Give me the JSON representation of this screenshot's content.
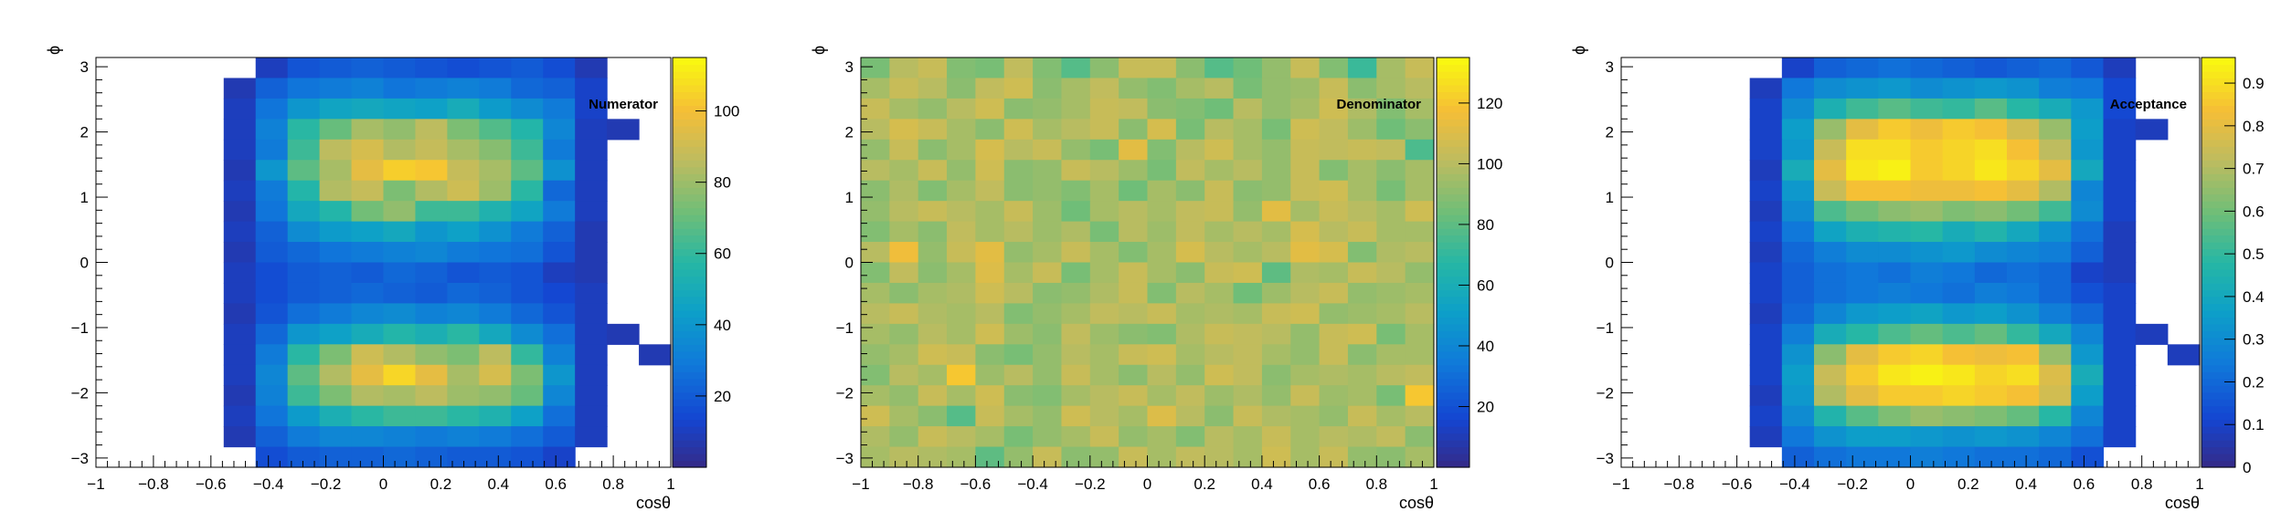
{
  "chart_data": [
    {
      "type": "heatmap",
      "title": "Numerator",
      "xlabel": "cosθ",
      "ylabel": "ϕ",
      "xlim": [
        -1,
        1
      ],
      "ylim": [
        -3.1416,
        3.1416
      ],
      "zlim": [
        0,
        115
      ],
      "x_ticks": [
        "−1",
        "−0.8",
        "−0.6",
        "−0.4",
        "−0.2",
        "0",
        "0.2",
        "0.4",
        "0.6",
        "0.8",
        "1"
      ],
      "y_ticks": [
        "3",
        "2",
        "1",
        "0",
        "−1",
        "−2",
        "−3"
      ],
      "z_ticks": [
        "100",
        "80",
        "60",
        "40",
        "20"
      ],
      "z_tick_values": [
        100,
        80,
        60,
        40,
        20
      ],
      "grid": false,
      "nx": 18,
      "ny": 20,
      "values": [
        [
          0,
          0,
          0,
          0,
          0,
          10,
          18,
          20,
          22,
          20,
          18,
          16,
          18,
          20,
          16,
          8,
          0,
          0
        ],
        [
          0,
          0,
          0,
          0,
          8,
          22,
          28,
          30,
          32,
          28,
          30,
          32,
          30,
          24,
          22,
          12,
          0,
          0
        ],
        [
          0,
          0,
          0,
          0,
          10,
          28,
          40,
          46,
          48,
          46,
          44,
          50,
          42,
          36,
          30,
          12,
          0,
          0
        ],
        [
          0,
          0,
          0,
          0,
          10,
          32,
          58,
          70,
          82,
          78,
          86,
          74,
          66,
          56,
          34,
          10,
          8,
          0
        ],
        [
          0,
          0,
          0,
          0,
          10,
          30,
          62,
          86,
          92,
          84,
          88,
          82,
          76,
          62,
          30,
          10,
          0,
          0
        ],
        [
          0,
          0,
          0,
          0,
          8,
          40,
          68,
          82,
          96,
          104,
          102,
          88,
          82,
          68,
          38,
          10,
          0,
          0
        ],
        [
          0,
          0,
          0,
          0,
          10,
          30,
          56,
          84,
          88,
          74,
          84,
          90,
          80,
          58,
          24,
          10,
          0,
          0
        ],
        [
          0,
          0,
          0,
          0,
          8,
          28,
          48,
          56,
          72,
          78,
          62,
          62,
          54,
          46,
          30,
          10,
          0,
          0
        ],
        [
          0,
          0,
          0,
          0,
          10,
          22,
          36,
          42,
          44,
          48,
          40,
          44,
          38,
          30,
          22,
          8,
          0,
          0
        ],
        [
          0,
          0,
          0,
          0,
          8,
          20,
          24,
          28,
          30,
          32,
          34,
          30,
          28,
          26,
          18,
          8,
          0,
          0
        ],
        [
          0,
          0,
          0,
          0,
          10,
          16,
          20,
          22,
          20,
          24,
          22,
          18,
          20,
          18,
          10,
          8,
          0,
          0
        ],
        [
          0,
          0,
          0,
          0,
          10,
          16,
          20,
          22,
          24,
          22,
          20,
          24,
          22,
          18,
          14,
          10,
          0,
          0
        ],
        [
          0,
          0,
          0,
          0,
          8,
          18,
          26,
          30,
          34,
          36,
          32,
          34,
          30,
          24,
          18,
          10,
          0,
          0
        ],
        [
          0,
          0,
          0,
          0,
          10,
          24,
          40,
          44,
          50,
          56,
          52,
          58,
          48,
          36,
          26,
          10,
          8,
          0
        ],
        [
          0,
          0,
          0,
          0,
          10,
          30,
          58,
          74,
          90,
          84,
          78,
          74,
          86,
          60,
          32,
          10,
          0,
          8
        ],
        [
          0,
          0,
          0,
          0,
          10,
          34,
          68,
          84,
          96,
          106,
          96,
          82,
          92,
          74,
          40,
          10,
          0,
          0
        ],
        [
          0,
          0,
          0,
          0,
          8,
          32,
          62,
          74,
          84,
          82,
          86,
          80,
          78,
          70,
          34,
          10,
          0,
          0
        ],
        [
          0,
          0,
          0,
          0,
          10,
          28,
          42,
          52,
          58,
          62,
          62,
          58,
          54,
          44,
          26,
          10,
          0,
          0
        ],
        [
          0,
          0,
          0,
          0,
          8,
          22,
          30,
          34,
          34,
          32,
          30,
          32,
          30,
          26,
          20,
          10,
          0,
          0
        ],
        [
          0,
          0,
          0,
          0,
          0,
          16,
          20,
          22,
          22,
          24,
          22,
          20,
          20,
          18,
          12,
          0,
          0,
          0
        ]
      ]
    },
    {
      "type": "heatmap",
      "title": "Denominator",
      "xlabel": "cosθ",
      "ylabel": "ϕ",
      "xlim": [
        -1,
        1
      ],
      "ylim": [
        -3.1416,
        3.1416
      ],
      "zlim": [
        0,
        135
      ],
      "x_ticks": [
        "−1",
        "−0.8",
        "−0.6",
        "−0.4",
        "−0.2",
        "0",
        "0.2",
        "0.4",
        "0.6",
        "0.8",
        "1"
      ],
      "y_ticks": [
        "3",
        "2",
        "1",
        "0",
        "−1",
        "−2",
        "−3"
      ],
      "z_ticks": [
        "120",
        "100",
        "80",
        "60",
        "40",
        "20"
      ],
      "z_tick_values": [
        120,
        100,
        80,
        60,
        40,
        20
      ],
      "grid": false,
      "nx": 20,
      "ny": 20,
      "values": [
        [
          86,
          100,
          104,
          88,
          86,
          102,
          88,
          78,
          90,
          104,
          104,
          90,
          78,
          84,
          92,
          104,
          88,
          72,
          96,
          104
        ],
        [
          96,
          104,
          100,
          90,
          102,
          106,
          90,
          96,
          102,
          92,
          88,
          96,
          100,
          86,
          92,
          94,
          104,
          90,
          96,
          100
        ],
        [
          104,
          96,
          92,
          100,
          106,
          90,
          92,
          96,
          104,
          102,
          90,
          88,
          84,
          100,
          92,
          96,
          106,
          98,
          88,
          96
        ],
        [
          100,
          108,
          104,
          96,
          90,
          106,
          96,
          100,
          104,
          90,
          108,
          86,
          100,
          96,
          86,
          106,
          102,
          94,
          84,
          90
        ],
        [
          92,
          104,
          90,
          96,
          108,
          100,
          104,
          92,
          86,
          112,
          88,
          100,
          106,
          96,
          92,
          104,
          102,
          104,
          102,
          76
        ],
        [
          100,
          96,
          104,
          92,
          106,
          90,
          92,
          104,
          100,
          94,
          86,
          102,
          96,
          100,
          92,
          104,
          88,
          96,
          90,
          96
        ],
        [
          90,
          98,
          88,
          96,
          102,
          90,
          92,
          88,
          96,
          84,
          96,
          90,
          104,
          90,
          92,
          104,
          106,
          96,
          86,
          96
        ],
        [
          92,
          100,
          104,
          100,
          96,
          104,
          94,
          84,
          96,
          100,
          96,
          102,
          104,
          92,
          112,
          96,
          104,
          100,
          96,
          106
        ],
        [
          88,
          96,
          90,
          102,
          96,
          100,
          94,
          98,
          86,
          100,
          94,
          102,
          96,
          100,
          96,
          108,
          100,
          104,
          96,
          96
        ],
        [
          100,
          116,
          92,
          104,
          112,
          92,
          96,
          104,
          96,
          88,
          96,
          108,
          100,
          96,
          100,
          112,
          108,
          88,
          98,
          100
        ],
        [
          88,
          102,
          90,
          96,
          110,
          96,
          104,
          86,
          96,
          104,
          96,
          90,
          104,
          106,
          80,
          98,
          96,
          104,
          100,
          92
        ],
        [
          96,
          90,
          96,
          98,
          106,
          100,
          90,
          92,
          98,
          104,
          88,
          100,
          96,
          84,
          94,
          100,
          104,
          92,
          94,
          96
        ],
        [
          100,
          104,
          98,
          96,
          100,
          88,
          92,
          96,
          102,
          100,
          104,
          96,
          98,
          96,
          104,
          106,
          92,
          94,
          96,
          100
        ],
        [
          96,
          92,
          100,
          96,
          106,
          94,
          90,
          102,
          94,
          90,
          88,
          98,
          104,
          102,
          100,
          92,
          104,
          106,
          86,
          96
        ],
        [
          92,
          96,
          106,
          104,
          90,
          86,
          92,
          100,
          96,
          104,
          106,
          96,
          100,
          102,
          96,
          92,
          104,
          90,
          96,
          96
        ],
        [
          88,
          100,
          96,
          120,
          94,
          100,
          92,
          104,
          96,
          90,
          100,
          92,
          106,
          102,
          90,
          96,
          98,
          96,
          100,
          102
        ],
        [
          96,
          92,
          104,
          96,
          106,
          90,
          88,
          96,
          100,
          104,
          96,
          102,
          94,
          98,
          92,
          104,
          94,
          96,
          86,
          120
        ],
        [
          106,
          96,
          90,
          78,
          104,
          96,
          92,
          106,
          100,
          96,
          110,
          100,
          90,
          104,
          98,
          96,
          92,
          104,
          96,
          100
        ],
        [
          98,
          92,
          104,
          100,
          96,
          86,
          92,
          96,
          104,
          92,
          96,
          88,
          100,
          96,
          104,
          96,
          100,
          98,
          102,
          90
        ],
        [
          96,
          100,
          98,
          96,
          80,
          92,
          104,
          90,
          92,
          104,
          96,
          102,
          100,
          96,
          106,
          96,
          104,
          92,
          90,
          96
        ]
      ]
    },
    {
      "type": "heatmap",
      "title": "Acceptance",
      "xlabel": "cosθ",
      "ylabel": "ϕ",
      "xlim": [
        -1,
        1
      ],
      "ylim": [
        -3.1416,
        3.1416
      ],
      "zlim": [
        0,
        0.96
      ],
      "x_ticks": [
        "−1",
        "−0.8",
        "−0.6",
        "−0.4",
        "−0.2",
        "0",
        "0.2",
        "0.4",
        "0.6",
        "0.8",
        "1"
      ],
      "y_ticks": [
        "3",
        "2",
        "1",
        "0",
        "−1",
        "−2",
        "−3"
      ],
      "z_ticks": [
        "0.9",
        "0.8",
        "0.7",
        "0.6",
        "0.5",
        "0.4",
        "0.3",
        "0.2",
        "0.1",
        "0"
      ],
      "z_tick_values": [
        0.9,
        0.8,
        0.7,
        0.6,
        0.5,
        0.4,
        0.3,
        0.2,
        0.1,
        0
      ],
      "grid": false,
      "nx": 18,
      "ny": 20,
      "values": [
        [
          0,
          0,
          0,
          0,
          0,
          0.1,
          0.18,
          0.2,
          0.22,
          0.2,
          0.18,
          0.16,
          0.18,
          0.2,
          0.16,
          0.08,
          0,
          0
        ],
        [
          0,
          0,
          0,
          0,
          0.08,
          0.24,
          0.3,
          0.32,
          0.34,
          0.3,
          0.32,
          0.34,
          0.32,
          0.26,
          0.24,
          0.12,
          0,
          0
        ],
        [
          0,
          0,
          0,
          0,
          0.1,
          0.3,
          0.44,
          0.52,
          0.56,
          0.52,
          0.5,
          0.56,
          0.48,
          0.42,
          0.34,
          0.12,
          0,
          0
        ],
        [
          0,
          0,
          0,
          0,
          0.1,
          0.36,
          0.66,
          0.8,
          0.86,
          0.82,
          0.86,
          0.84,
          0.76,
          0.66,
          0.36,
          0.1,
          0.08,
          0
        ],
        [
          0,
          0,
          0,
          0,
          0.1,
          0.34,
          0.74,
          0.9,
          0.9,
          0.86,
          0.88,
          0.9,
          0.84,
          0.72,
          0.34,
          0.1,
          0,
          0
        ],
        [
          0,
          0,
          0,
          0,
          0.08,
          0.42,
          0.8,
          0.92,
          0.94,
          0.86,
          0.88,
          0.92,
          0.88,
          0.8,
          0.4,
          0.1,
          0,
          0
        ],
        [
          0,
          0,
          0,
          0,
          0.1,
          0.34,
          0.74,
          0.84,
          0.84,
          0.82,
          0.82,
          0.84,
          0.8,
          0.7,
          0.28,
          0.1,
          0,
          0
        ],
        [
          0,
          0,
          0,
          0,
          0.08,
          0.3,
          0.54,
          0.6,
          0.64,
          0.66,
          0.62,
          0.64,
          0.6,
          0.52,
          0.3,
          0.1,
          0,
          0
        ],
        [
          0,
          0,
          0,
          0,
          0.1,
          0.24,
          0.38,
          0.44,
          0.46,
          0.48,
          0.42,
          0.46,
          0.4,
          0.32,
          0.22,
          0.08,
          0,
          0
        ],
        [
          0,
          0,
          0,
          0,
          0.08,
          0.2,
          0.26,
          0.3,
          0.3,
          0.32,
          0.34,
          0.3,
          0.28,
          0.26,
          0.18,
          0.08,
          0,
          0
        ],
        [
          0,
          0,
          0,
          0,
          0.1,
          0.18,
          0.22,
          0.24,
          0.22,
          0.26,
          0.24,
          0.2,
          0.22,
          0.2,
          0.1,
          0.08,
          0,
          0
        ],
        [
          0,
          0,
          0,
          0,
          0.1,
          0.18,
          0.22,
          0.24,
          0.26,
          0.24,
          0.22,
          0.26,
          0.24,
          0.2,
          0.14,
          0.1,
          0,
          0
        ],
        [
          0,
          0,
          0,
          0,
          0.08,
          0.2,
          0.28,
          0.34,
          0.36,
          0.38,
          0.34,
          0.36,
          0.32,
          0.26,
          0.2,
          0.1,
          0,
          0
        ],
        [
          0,
          0,
          0,
          0,
          0.1,
          0.26,
          0.42,
          0.48,
          0.54,
          0.58,
          0.54,
          0.58,
          0.5,
          0.4,
          0.28,
          0.1,
          0.08,
          0
        ],
        [
          0,
          0,
          0,
          0,
          0.1,
          0.32,
          0.64,
          0.8,
          0.86,
          0.88,
          0.84,
          0.82,
          0.84,
          0.66,
          0.34,
          0.1,
          0,
          0.08
        ],
        [
          0,
          0,
          0,
          0,
          0.1,
          0.36,
          0.74,
          0.86,
          0.92,
          0.94,
          0.92,
          0.88,
          0.9,
          0.78,
          0.42,
          0.1,
          0,
          0
        ],
        [
          0,
          0,
          0,
          0,
          0.08,
          0.34,
          0.7,
          0.8,
          0.86,
          0.86,
          0.88,
          0.86,
          0.84,
          0.76,
          0.36,
          0.1,
          0,
          0
        ],
        [
          0,
          0,
          0,
          0,
          0.1,
          0.3,
          0.46,
          0.56,
          0.62,
          0.66,
          0.64,
          0.62,
          0.58,
          0.48,
          0.28,
          0.1,
          0,
          0
        ],
        [
          0,
          0,
          0,
          0,
          0.08,
          0.24,
          0.32,
          0.36,
          0.36,
          0.34,
          0.32,
          0.34,
          0.32,
          0.28,
          0.22,
          0.1,
          0,
          0
        ],
        [
          0,
          0,
          0,
          0,
          0,
          0.18,
          0.22,
          0.24,
          0.24,
          0.26,
          0.24,
          0.22,
          0.22,
          0.2,
          0.14,
          0,
          0,
          0
        ]
      ]
    }
  ]
}
